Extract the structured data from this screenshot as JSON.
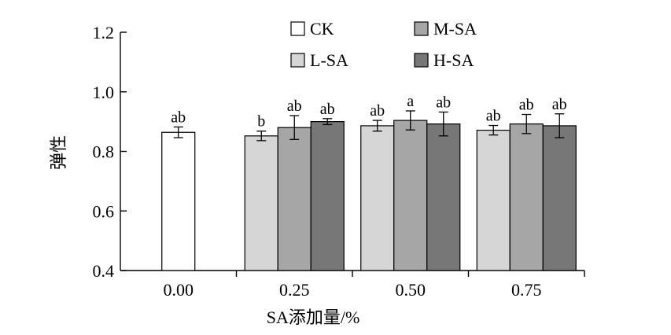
{
  "chart_data": {
    "type": "bar",
    "ylabel": "弹性",
    "xlabel": "SA添加量/%",
    "ylim": [
      0.4,
      1.2
    ],
    "yticks": [
      "0.4",
      "0.6",
      "0.8",
      "1.0",
      "1.2"
    ],
    "categories": [
      "0.00",
      "0.25",
      "0.50",
      "0.75"
    ],
    "legend_position": "top-right",
    "legend": [
      "CK",
      "M-SA",
      "L-SA",
      "H-SA"
    ],
    "colors": {
      "CK": "#ffffff",
      "L-SA": "#d6d6d6",
      "M-SA": "#a6a6a6",
      "H-SA": "#777777"
    },
    "bars": [
      {
        "category": "0.00",
        "series": "CK",
        "value": 0.864,
        "error": 0.018,
        "letter": "ab"
      },
      {
        "category": "0.25",
        "series": "L-SA",
        "value": 0.852,
        "error": 0.016,
        "letter": "b"
      },
      {
        "category": "0.25",
        "series": "M-SA",
        "value": 0.88,
        "error": 0.04,
        "letter": "ab"
      },
      {
        "category": "0.25",
        "series": "H-SA",
        "value": 0.9,
        "error": 0.01,
        "letter": "ab"
      },
      {
        "category": "0.50",
        "series": "L-SA",
        "value": 0.886,
        "error": 0.018,
        "letter": "ab"
      },
      {
        "category": "0.50",
        "series": "M-SA",
        "value": 0.904,
        "error": 0.032,
        "letter": "a"
      },
      {
        "category": "0.50",
        "series": "H-SA",
        "value": 0.892,
        "error": 0.04,
        "letter": "ab"
      },
      {
        "category": "0.75",
        "series": "L-SA",
        "value": 0.871,
        "error": 0.016,
        "letter": "ab"
      },
      {
        "category": "0.75",
        "series": "M-SA",
        "value": 0.892,
        "error": 0.032,
        "letter": "ab"
      },
      {
        "category": "0.75",
        "series": "H-SA",
        "value": 0.886,
        "error": 0.04,
        "letter": "ab"
      }
    ]
  }
}
